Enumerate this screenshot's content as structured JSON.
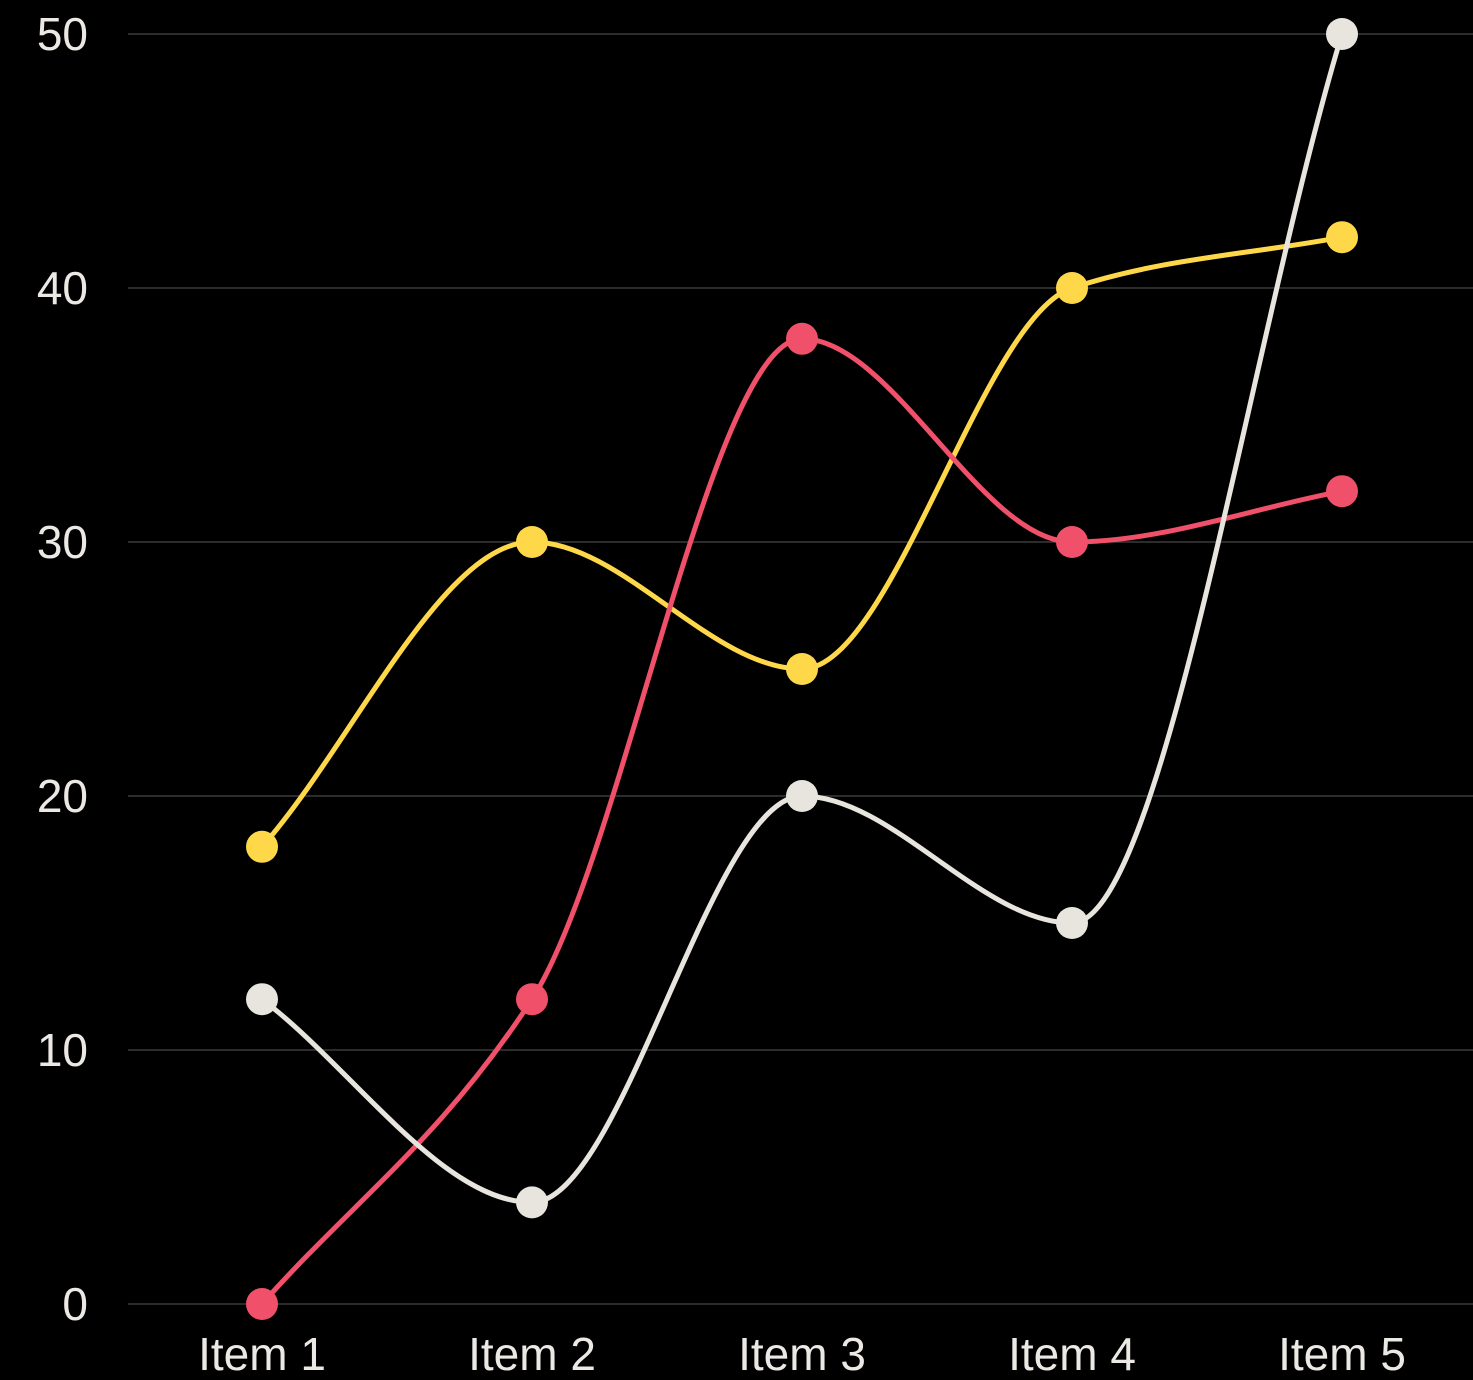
{
  "chart_data": {
    "type": "line",
    "categories": [
      "Item 1",
      "Item 2",
      "Item 3",
      "Item 4",
      "Item 5"
    ],
    "series": [
      {
        "values": [
          18,
          30,
          25,
          40,
          42
        ],
        "color": "#ffd84a"
      },
      {
        "values": [
          0,
          12,
          38,
          30,
          32
        ],
        "color": "#f0506a"
      },
      {
        "values": [
          12,
          4,
          20,
          15,
          50
        ],
        "color": "#e8e4de"
      }
    ],
    "y_ticks": [
      "0",
      "10",
      "20",
      "30",
      "40",
      "50"
    ],
    "ylim": [
      0,
      50
    ],
    "smooth": true,
    "grid": true,
    "legend": false,
    "background": "#000000"
  }
}
